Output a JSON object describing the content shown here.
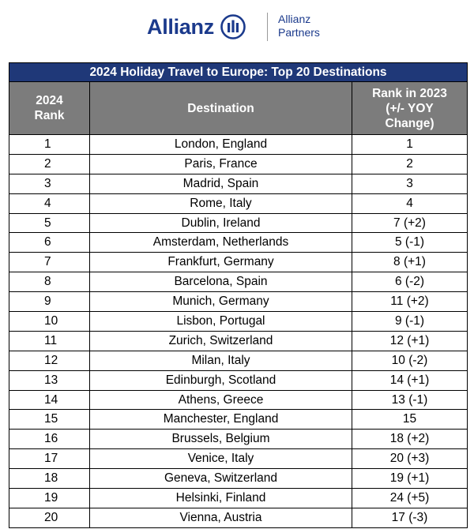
{
  "brand": {
    "name": "Allianz",
    "sub_line1": "Allianz",
    "sub_line2": "Partners",
    "color": "#1b3a8c"
  },
  "table": {
    "title": "2024 Holiday Travel to Europe: Top 20 Destinations",
    "headers": {
      "rank_line1": "2024",
      "rank_line2": "Rank",
      "destination": "Destination",
      "prev_line1": "Rank in 2023",
      "prev_line2": "(+/- YOY",
      "prev_line3": "Change)"
    },
    "colors": {
      "title_bg": "#1f3878",
      "header_bg": "#7c7c7c"
    },
    "rows": [
      {
        "rank": "1",
        "destination": "London, England",
        "prev": "1"
      },
      {
        "rank": "2",
        "destination": "Paris, France",
        "prev": "2"
      },
      {
        "rank": "3",
        "destination": "Madrid, Spain",
        "prev": "3"
      },
      {
        "rank": "4",
        "destination": "Rome, Italy",
        "prev": "4"
      },
      {
        "rank": "5",
        "destination": "Dublin, Ireland",
        "prev": "7 (+2)"
      },
      {
        "rank": "6",
        "destination": "Amsterdam, Netherlands",
        "prev": "5 (-1)"
      },
      {
        "rank": "7",
        "destination": "Frankfurt, Germany",
        "prev": "8 (+1)"
      },
      {
        "rank": "8",
        "destination": "Barcelona, Spain",
        "prev": "6 (-2)"
      },
      {
        "rank": "9",
        "destination": "Munich, Germany",
        "prev": "11 (+2)"
      },
      {
        "rank": "10",
        "destination": "Lisbon, Portugal",
        "prev": "9 (-1)"
      },
      {
        "rank": "11",
        "destination": "Zurich, Switzerland",
        "prev": "12 (+1)"
      },
      {
        "rank": "12",
        "destination": "Milan, Italy",
        "prev": "10 (-2)"
      },
      {
        "rank": "13",
        "destination": "Edinburgh, Scotland",
        "prev": "14 (+1)"
      },
      {
        "rank": "14",
        "destination": "Athens, Greece",
        "prev": "13 (-1)"
      },
      {
        "rank": "15",
        "destination": "Manchester, England",
        "prev": "15"
      },
      {
        "rank": "16",
        "destination": "Brussels, Belgium",
        "prev": "18 (+2)"
      },
      {
        "rank": "17",
        "destination": "Venice, Italy",
        "prev": "20 (+3)"
      },
      {
        "rank": "18",
        "destination": "Geneva, Switzerland",
        "prev": "19 (+1)"
      },
      {
        "rank": "19",
        "destination": "Helsinki, Finland",
        "prev": "24 (+5)"
      },
      {
        "rank": "20",
        "destination": "Vienna, Austria",
        "prev": "17 (-3)"
      }
    ]
  }
}
